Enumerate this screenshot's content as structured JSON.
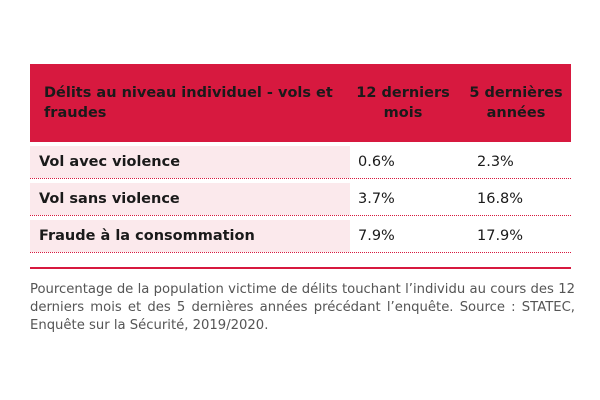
{
  "colors": {
    "accent": "#d7193f",
    "row_tint": "#fbe9ec",
    "caption_text": "#555555"
  },
  "table": {
    "header": {
      "description": "Délits au niveau individuel - vols et fraudes",
      "col1": "12 derniers mois",
      "col2": "5 dernières années"
    },
    "rows": [
      {
        "label": "Vol avec violence",
        "v12m": "0.6%",
        "v5y": "2.3%"
      },
      {
        "label": "Vol sans violence",
        "v12m": "3.7%",
        "v5y": "16.8%"
      },
      {
        "label": "Fraude à la consommation",
        "v12m": "7.9%",
        "v5y": "17.9%"
      }
    ]
  },
  "caption": {
    "text": "Pourcentage de la population victime de délits touchant l’individu au cours des 12 derniers mois et des 5 dernières années précédant l’enquête.",
    "source": "Source : STATEC, Enquête sur la Sécurité, 2019/2020."
  }
}
